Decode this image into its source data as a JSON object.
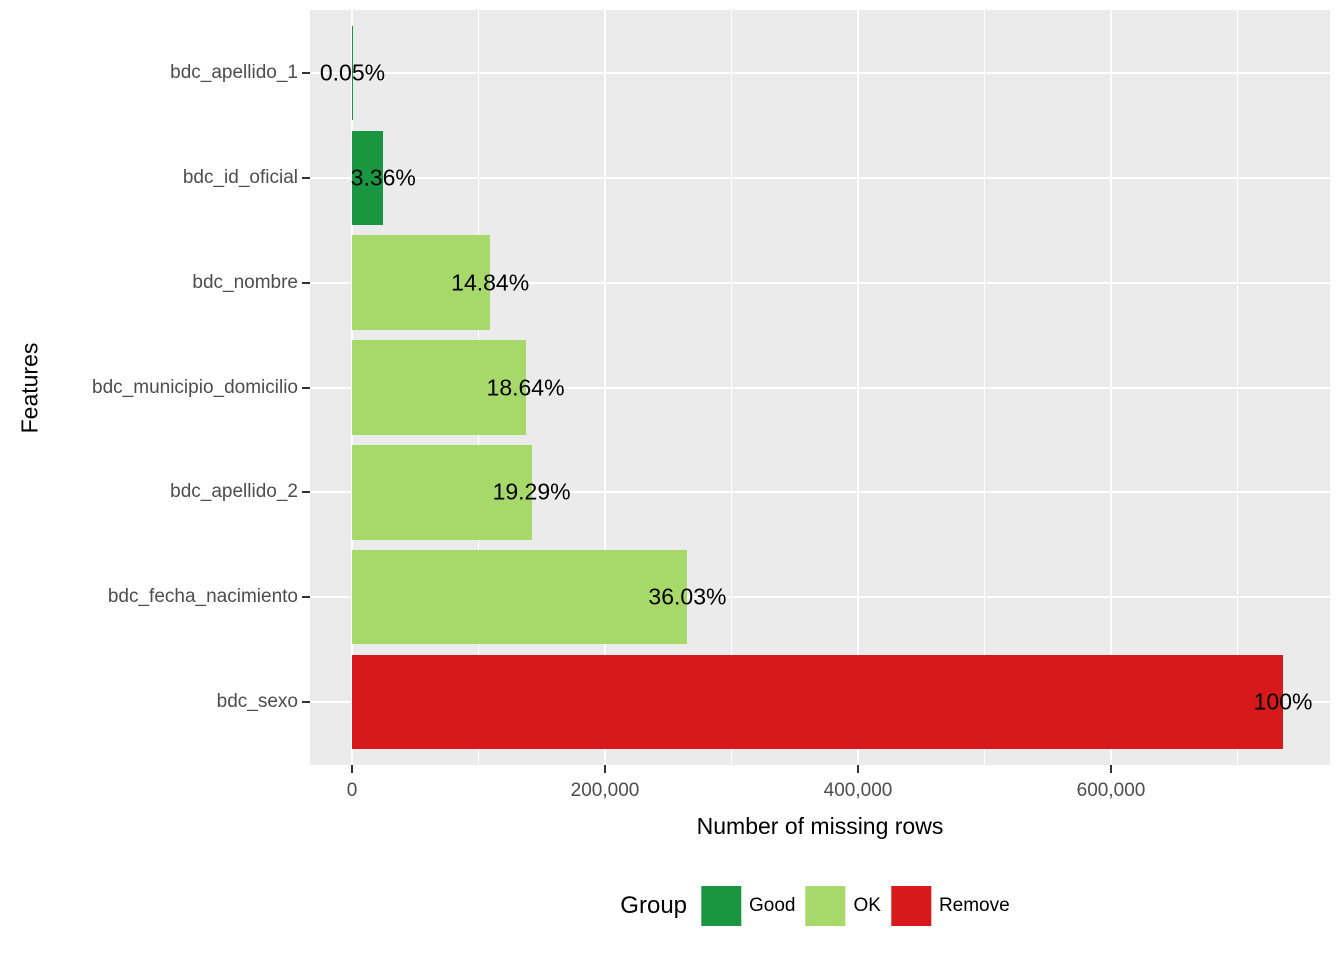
{
  "chart_data": {
    "type": "bar",
    "orientation": "horizontal",
    "title": "",
    "xlabel": "Number of missing rows",
    "ylabel": "Features",
    "grid": true,
    "legend_position": "bottom",
    "xlim": [
      -36800,
      772800
    ],
    "total_rows_estimate": 736000,
    "x_ticks": [
      {
        "value": 0,
        "label": "0"
      },
      {
        "value": 200000,
        "label": "200,000"
      },
      {
        "value": 400000,
        "label": "400,000"
      },
      {
        "value": 600000,
        "label": "600,000"
      }
    ],
    "x_minor_ticks": [
      100000,
      300000,
      500000,
      700000
    ],
    "categories": [
      "bdc_apellido_1",
      "bdc_id_oficial",
      "bdc_nombre",
      "bdc_municipio_domicilio",
      "bdc_apellido_2",
      "bdc_fecha_nacimiento",
      "bdc_sexo"
    ],
    "bars": [
      {
        "feature": "bdc_apellido_1",
        "value": 368,
        "pct_label": "0.05%",
        "group": "Good"
      },
      {
        "feature": "bdc_id_oficial",
        "value": 24730,
        "pct_label": "3.36%",
        "group": "Good"
      },
      {
        "feature": "bdc_nombre",
        "value": 109220,
        "pct_label": "14.84%",
        "group": "OK"
      },
      {
        "feature": "bdc_municipio_domicilio",
        "value": 137190,
        "pct_label": "18.64%",
        "group": "OK"
      },
      {
        "feature": "bdc_apellido_2",
        "value": 141970,
        "pct_label": "19.29%",
        "group": "OK"
      },
      {
        "feature": "bdc_fecha_nacimiento",
        "value": 265180,
        "pct_label": "36.03%",
        "group": "OK"
      },
      {
        "feature": "bdc_sexo",
        "value": 736000,
        "pct_label": "100%",
        "group": "Remove"
      }
    ],
    "legend": {
      "title": "Group",
      "entries": [
        {
          "label": "Good",
          "color": "#1A9641"
        },
        {
          "label": "OK",
          "color": "#A6D96A"
        },
        {
          "label": "Remove",
          "color": "#D7191C"
        }
      ]
    },
    "colors": {
      "Good": "#1A9641",
      "OK": "#A6D96A",
      "Remove": "#D7191C"
    },
    "panel_bg": "#EBEBEB",
    "grid_color": "#FFFFFF"
  }
}
